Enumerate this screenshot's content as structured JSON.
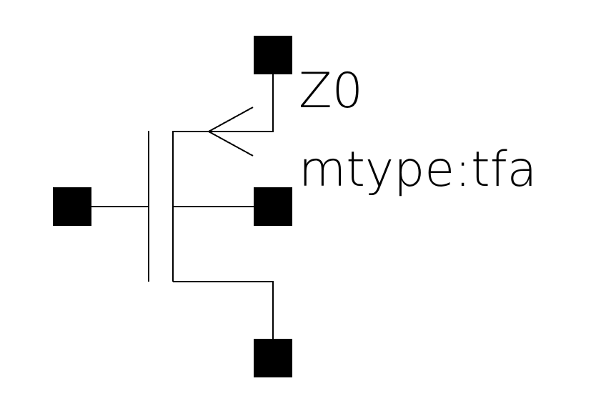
{
  "symbol": {
    "device_type": "MOSFET",
    "channel": "P",
    "name_label": "Z0",
    "param_label": "mtype:tfa",
    "pins": [
      "drain",
      "gate",
      "bulk",
      "source"
    ]
  },
  "colors": {
    "background": "#ffffff",
    "stroke": "#000000"
  }
}
